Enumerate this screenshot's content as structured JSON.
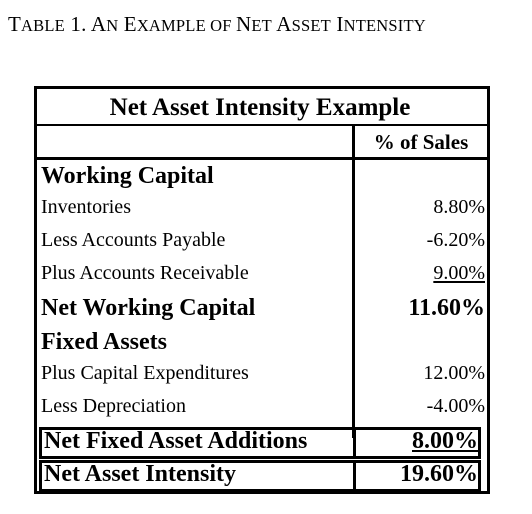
{
  "caption": {
    "first_letter": "T",
    "word1_rest": "ABLE",
    "num": " 1. ",
    "a": "A",
    "n_rest": "N",
    "space": " ",
    "e": "E",
    "xample_rest": "XAMPLE",
    "of": " OF ",
    "n2": "N",
    "et_rest": "ET",
    "a2": " A",
    "sset_rest": "SSET",
    "i": " I",
    "ntensity_rest": "NTENSITY"
  },
  "table": {
    "title": "Net Asset Intensity Example",
    "column_header": "% of Sales",
    "rows": [
      {
        "label": "Working Capital",
        "value": ""
      },
      {
        "label": "Inventories",
        "value": "8.80%"
      },
      {
        "label": "Less Accounts Payable",
        "value": "-6.20%"
      },
      {
        "label": "Plus Accounts Receivable",
        "value": "9.00%"
      },
      {
        "label": "Net Working Capital",
        "value": "11.60%"
      },
      {
        "label": "Fixed Assets",
        "value": ""
      },
      {
        "label": "Plus Capital Expenditures",
        "value": "12.00%"
      },
      {
        "label": "Less Depreciation",
        "value": "-4.00%"
      },
      {
        "label": "Net Fixed Asset Additions",
        "value": "8.00%"
      },
      {
        "label": "Net Asset Intensity",
        "value": "19.60%"
      }
    ]
  }
}
